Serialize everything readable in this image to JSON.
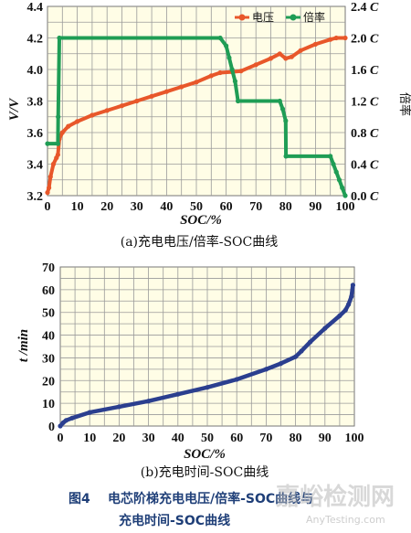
{
  "chart_data": [
    {
      "type": "line",
      "caption": "(a)充电电压/倍率-SOC曲线",
      "xlabel": "SOC/%",
      "ylabel_left": "V/V",
      "ylabel_right": "倍率",
      "xlim": [
        0,
        100
      ],
      "ylim_left": [
        3.2,
        4.4
      ],
      "ylim_right": [
        0.0,
        2.4
      ],
      "x_ticks": [
        "0",
        "10",
        "20",
        "30",
        "40",
        "50",
        "60",
        "70",
        "80",
        "90",
        "100"
      ],
      "y_ticks_left": [
        "3.2",
        "3.4",
        "3.6",
        "3.8",
        "4.0",
        "4.2",
        "4.4"
      ],
      "y_ticks_right": [
        "0.0 C",
        "0.4 C",
        "0.8 C",
        "1.2 C",
        "1.6 C",
        "2.0 C",
        "2.4 C"
      ],
      "grid": true,
      "legend": "top-right",
      "series": [
        {
          "name": "电压",
          "axis": "left",
          "color": "#e8572a",
          "x": [
            0,
            0.5,
            1,
            2,
            3,
            3.5,
            4,
            5,
            7,
            10,
            15,
            20,
            25,
            30,
            35,
            40,
            45,
            50,
            55,
            58,
            62,
            65,
            70,
            75,
            78,
            80,
            82,
            85,
            90,
            95,
            97,
            100
          ],
          "y": [
            3.22,
            3.25,
            3.32,
            3.4,
            3.44,
            3.46,
            3.56,
            3.6,
            3.64,
            3.67,
            3.71,
            3.74,
            3.77,
            3.8,
            3.83,
            3.86,
            3.89,
            3.92,
            3.96,
            3.98,
            3.985,
            3.99,
            4.03,
            4.07,
            4.1,
            4.07,
            4.08,
            4.12,
            4.16,
            4.19,
            4.2,
            4.2
          ]
        },
        {
          "name": "倍率",
          "axis": "right",
          "color": "#1f9d55",
          "x": [
            0,
            3.5,
            3.6,
            4,
            58,
            60,
            61,
            62,
            63,
            64,
            78,
            79,
            80,
            80.1,
            95,
            96,
            97,
            98,
            99,
            100
          ],
          "y": [
            0.66,
            0.66,
            1.0,
            2.0,
            2.0,
            1.9,
            1.75,
            1.6,
            1.45,
            1.2,
            1.2,
            1.1,
            0.95,
            0.5,
            0.5,
            0.4,
            0.3,
            0.2,
            0.1,
            0.0
          ]
        }
      ]
    },
    {
      "type": "line",
      "caption": "(b)充电时间-SOC曲线",
      "xlabel": "SOC/%",
      "ylabel": "t /min",
      "xlim": [
        0,
        100
      ],
      "ylim": [
        0,
        70
      ],
      "x_ticks": [
        "0",
        "10",
        "20",
        "30",
        "40",
        "50",
        "60",
        "70",
        "80",
        "90",
        "100"
      ],
      "y_ticks": [
        "0",
        "10",
        "20",
        "30",
        "40",
        "50",
        "60",
        "70"
      ],
      "grid": true,
      "series": [
        {
          "name": "",
          "color": "#2b3f8f",
          "x": [
            0,
            1,
            2,
            4,
            10,
            20,
            30,
            40,
            50,
            60,
            70,
            75,
            80,
            82,
            85,
            90,
            95,
            97,
            98,
            99,
            99.5
          ],
          "y": [
            0,
            1.5,
            2.5,
            3.5,
            6,
            8.5,
            11,
            14,
            17,
            20.5,
            25,
            27.5,
            30.5,
            33,
            37,
            43,
            48.5,
            51,
            53.5,
            57,
            62
          ]
        }
      ]
    }
  ],
  "figure": {
    "label": "图4",
    "title_line1": "电芯阶梯充电电压/倍率-SOC曲线与",
    "title_line2": "充电时间-SOC曲线"
  },
  "watermark": {
    "text": "嘉峪检测网",
    "url": "AnyTesting.com"
  }
}
